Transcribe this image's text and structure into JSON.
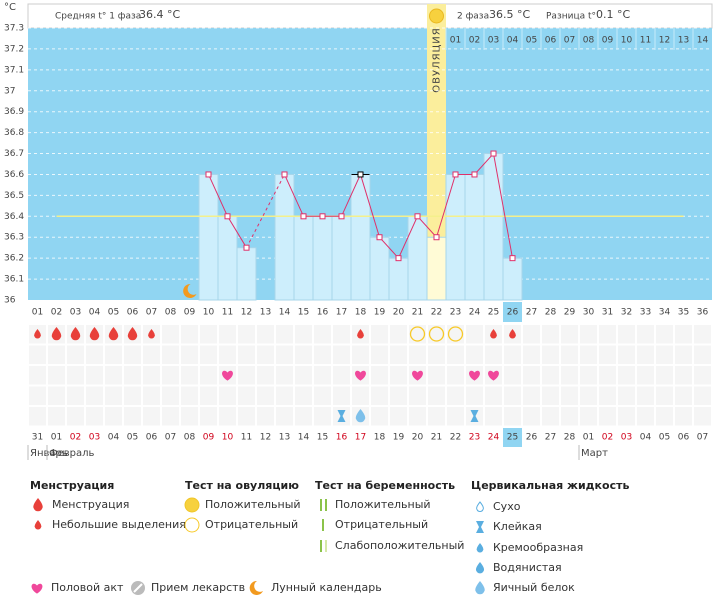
{
  "chart_data": {
    "type": "line",
    "y_unit": "°C",
    "header": {
      "phase1_label": "Средняя t° 1 фаза",
      "phase1_value": "36.4 °C",
      "phase2_label": "2 фаза",
      "phase2_value": "36.5 °C",
      "diff_label": "Разница t°",
      "diff_value": "0.1 °C"
    },
    "categories": [
      "01",
      "02",
      "03",
      "04",
      "05",
      "06",
      "07",
      "08",
      "09",
      "10",
      "11",
      "12",
      "13",
      "14",
      "15",
      "16",
      "17",
      "18",
      "19",
      "20",
      "21",
      "22",
      "23",
      "24",
      "25",
      "26",
      "27",
      "28",
      "29",
      "30",
      "31",
      "32",
      "33",
      "34",
      "35",
      "36"
    ],
    "values": [
      null,
      null,
      null,
      null,
      null,
      null,
      null,
      null,
      null,
      36.6,
      36.4,
      36.25,
      null,
      36.6,
      36.4,
      36.4,
      36.4,
      36.6,
      36.3,
      36.2,
      36.4,
      36.3,
      36.6,
      36.6,
      36.7,
      36.2,
      null,
      null,
      null,
      null,
      null,
      null,
      null,
      null,
      null,
      null
    ],
    "color": "#e0306a",
    "ylim": [
      36,
      37.3
    ],
    "yticks": [
      36,
      36.1,
      36.2,
      36.3,
      36.4,
      36.5,
      36.6,
      36.7,
      36.8,
      36.9,
      37,
      37.1,
      37.2,
      37.3
    ],
    "grid": true,
    "coverline": 36.4,
    "coverline_color": "#f4f08c",
    "ovulation_index": 21,
    "ovulation_label": "ОВУЛЯЦИЯ",
    "phase2_start_index": 22,
    "phase2_days": [
      "01",
      "02",
      "03",
      "04",
      "05",
      "06",
      "07",
      "08",
      "09",
      "10",
      "11",
      "12",
      "13",
      "14"
    ],
    "today_index": 25,
    "selected_index": 17,
    "dates": [
      "31",
      "01",
      "02",
      "03",
      "04",
      "05",
      "06",
      "07",
      "08",
      "09",
      "10",
      "11",
      "12",
      "13",
      "14",
      "15",
      "16",
      "17",
      "18",
      "19",
      "20",
      "21",
      "22",
      "23",
      "24",
      "25",
      "26",
      "27",
      "28",
      "01",
      "02",
      "03",
      "04",
      "05",
      "06",
      "07"
    ],
    "date_colors": [
      "#444",
      "#444",
      "#d0021b",
      "#d0021b",
      "#444",
      "#444",
      "#444",
      "#444",
      "#444",
      "#d0021b",
      "#d0021b",
      "#444",
      "#444",
      "#444",
      "#444",
      "#444",
      "#d0021b",
      "#d0021b",
      "#444",
      "#444",
      "#444",
      "#444",
      "#444",
      "#d0021b",
      "#d0021b",
      "#444",
      "#444",
      "#444",
      "#444",
      "#444",
      "#d0021b",
      "#d0021b",
      "#444",
      "#444",
      "#444",
      "#444"
    ],
    "months": [
      {
        "label": "Январь",
        "index": 0
      },
      {
        "label": "Февраль",
        "index": 1
      },
      {
        "label": "Март",
        "index": 29
      }
    ],
    "events": {
      "menstruation": [
        {
          "day": 0,
          "kind": "small"
        },
        {
          "day": 1,
          "kind": "big"
        },
        {
          "day": 2,
          "kind": "big"
        },
        {
          "day": 3,
          "kind": "big"
        },
        {
          "day": 4,
          "kind": "big"
        },
        {
          "day": 5,
          "kind": "big"
        },
        {
          "day": 6,
          "kind": "small"
        },
        {
          "day": 17,
          "kind": "small"
        },
        {
          "day": 24,
          "kind": "small"
        },
        {
          "day": 25,
          "kind": "small"
        }
      ],
      "ovulation_test": [
        {
          "day": 20,
          "kind": "negative"
        },
        {
          "day": 21,
          "kind": "negative"
        },
        {
          "day": 22,
          "kind": "negative"
        }
      ],
      "sex": [
        10,
        17,
        20,
        23,
        24
      ],
      "cervical": [
        {
          "day": 16,
          "kind": "sticky"
        },
        {
          "day": 17,
          "kind": "egg_white"
        },
        {
          "day": 23,
          "kind": "sticky"
        }
      ],
      "moon": [
        8
      ]
    }
  },
  "legend": {
    "menstruation": {
      "title": "Менструация",
      "items": [
        "Менструация",
        "Небольшие выделения"
      ]
    },
    "ovulation_test": {
      "title": "Тест на овуляцию",
      "items": [
        "Положительный",
        "Отрицательный"
      ]
    },
    "pregnancy_test": {
      "title": "Тест на беременность",
      "items": [
        "Положительный",
        "Отрицательный",
        "Слабоположительный"
      ]
    },
    "cervical": {
      "title": "Цервикальная жидкость",
      "items": [
        "Сухо",
        "Клейкая",
        "Кремообразная",
        "Водянистая",
        "Яичный белок"
      ]
    },
    "other": [
      "Половой акт",
      "Прием лекарств",
      "Лунный календарь"
    ]
  }
}
